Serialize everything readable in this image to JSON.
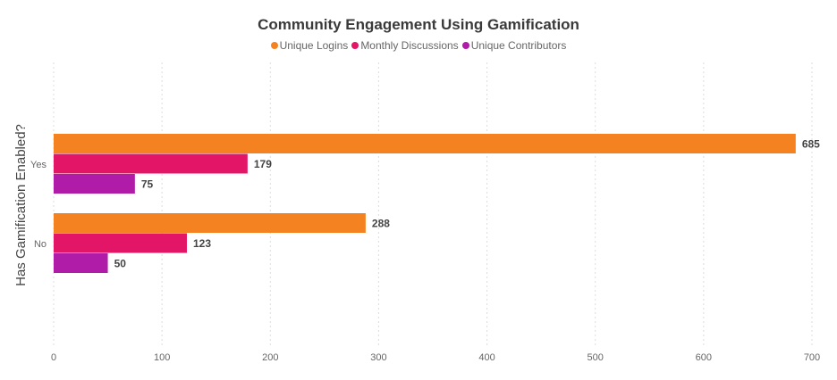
{
  "chart_data": {
    "type": "bar",
    "orientation": "horizontal",
    "title": "Community Engagement Using Gamification",
    "ylabel": "Has Gamification Enabled?",
    "xlabel": "",
    "categories": [
      "Yes",
      "No"
    ],
    "series": [
      {
        "name": "Unique Logins",
        "color": "#F58220",
        "values": [
          685,
          288
        ]
      },
      {
        "name": "Monthly Discussions",
        "color": "#E31566",
        "values": [
          179,
          123
        ]
      },
      {
        "name": "Unique Contributors",
        "color": "#B01CA8",
        "values": [
          75,
          50
        ]
      }
    ],
    "xlim": [
      0,
      700
    ],
    "xticks": [
      0,
      100,
      200,
      300,
      400,
      500,
      600,
      700
    ],
    "grid": true,
    "legend_position": "top"
  }
}
